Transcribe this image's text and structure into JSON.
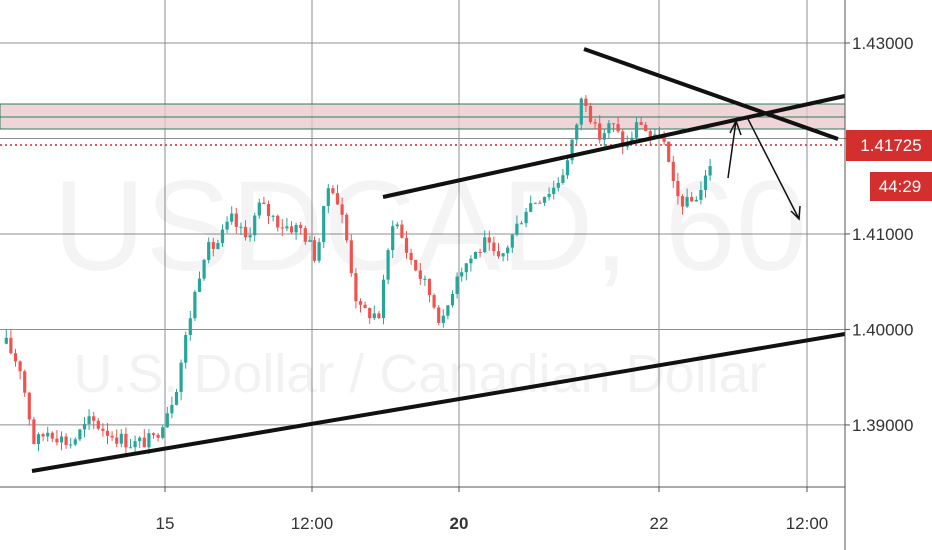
{
  "chart_data": {
    "type": "candlestick",
    "symbol": "USDCAD, 60",
    "subtitle": "U.S. Dollar / Canadian Dollar",
    "y_ticks": [
      "1.43000",
      "1.42000",
      "1.41000",
      "1.40000",
      "1.39000"
    ],
    "y_tick_values": [
      1.43,
      1.42,
      1.41,
      1.4,
      1.39
    ],
    "ylim": [
      1.3835,
      1.4345
    ],
    "x_ticks": [
      {
        "label": "15",
        "bold": false
      },
      {
        "label": "12:00",
        "bold": false
      },
      {
        "label": "20",
        "bold": true
      },
      {
        "label": "22",
        "bold": false
      },
      {
        "label": "12:00",
        "bold": false
      }
    ],
    "last_price": "1.41725",
    "last_price_value": 1.41725,
    "countdown": "44:29",
    "resistance_zone": [
      1.4188,
      1.4212
    ],
    "price_path": [
      [
        0,
        1.3985
      ],
      [
        0.02,
        1.396
      ],
      [
        0.04,
        1.388
      ],
      [
        0.06,
        1.3895
      ],
      [
        0.09,
        1.388
      ],
      [
        0.12,
        1.3905
      ],
      [
        0.15,
        1.389
      ],
      [
        0.18,
        1.388
      ],
      [
        0.21,
        1.3885
      ],
      [
        0.24,
        1.3935
      ],
      [
        0.26,
        1.401
      ],
      [
        0.28,
        1.408
      ],
      [
        0.3,
        1.409
      ],
      [
        0.32,
        1.4115
      ],
      [
        0.34,
        1.4095
      ],
      [
        0.36,
        1.413
      ],
      [
        0.39,
        1.411
      ],
      [
        0.42,
        1.4105
      ],
      [
        0.44,
        1.4075
      ],
      [
        0.46,
        1.416
      ],
      [
        0.48,
        1.411
      ],
      [
        0.5,
        1.402
      ],
      [
        0.53,
        1.4015
      ],
      [
        0.55,
        1.412
      ],
      [
        0.57,
        1.408
      ],
      [
        0.6,
        1.404
      ],
      [
        0.62,
        1.4005
      ],
      [
        0.64,
        1.406
      ],
      [
        0.66,
        1.4075
      ],
      [
        0.68,
        1.409
      ],
      [
        0.7,
        1.407
      ],
      [
        0.72,
        1.41
      ],
      [
        0.74,
        1.413
      ],
      [
        0.76,
        1.414
      ],
      [
        0.78,
        1.415
      ],
      [
        0.8,
        1.418
      ],
      [
        0.82,
        1.425
      ],
      [
        0.84,
        1.42
      ],
      [
        0.86,
        1.4215
      ],
      [
        0.88,
        1.419
      ],
      [
        0.9,
        1.422
      ],
      [
        0.92,
        1.4195
      ],
      [
        0.93,
        1.421
      ],
      [
        0.95,
        1.414
      ],
      [
        0.97,
        1.413
      ],
      [
        0.99,
        1.415
      ],
      [
        1.0,
        1.4175
      ]
    ]
  }
}
